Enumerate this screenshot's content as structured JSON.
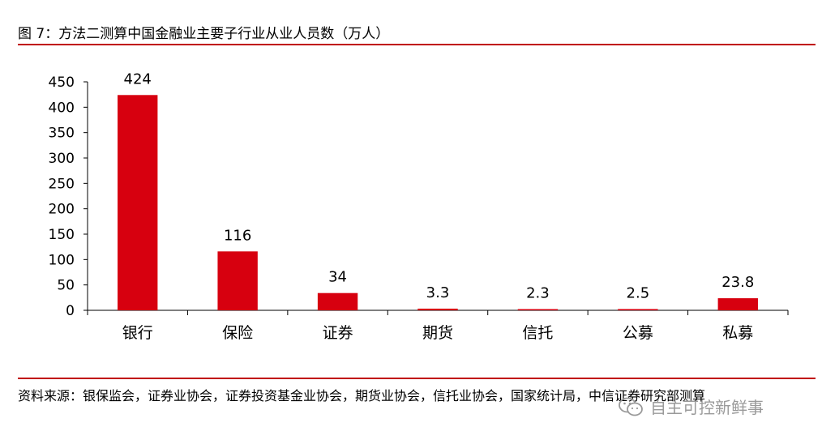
{
  "title": "图 7：方法二测算中国金融业主要子行业从业人员数（万人）",
  "source": "资料来源：银保监会，证券业协会，证券投资基金业协会，期货业协会，信托业协会，国家统计局，中信证券研究部测算",
  "watermark": "自主可控新鲜事",
  "colors": {
    "bar": "#d7000f",
    "rule": "#c00000",
    "axis": "#000000",
    "watermark": "#9a9a9a"
  },
  "chart_data": {
    "type": "bar",
    "title": "",
    "xlabel": "",
    "ylabel": "",
    "categories": [
      "银行",
      "保险",
      "证券",
      "期货",
      "信托",
      "公募",
      "私募"
    ],
    "values": [
      424,
      116,
      34,
      3.3,
      2.3,
      2.5,
      23.8
    ],
    "data_labels": [
      "424",
      "116",
      "34",
      "3.3",
      "2.3",
      "2.5",
      "23.8"
    ],
    "ylim": [
      0,
      450
    ],
    "yticks": [
      0,
      50,
      100,
      150,
      200,
      250,
      300,
      350,
      400,
      450
    ],
    "grid": false,
    "legend": "none"
  }
}
